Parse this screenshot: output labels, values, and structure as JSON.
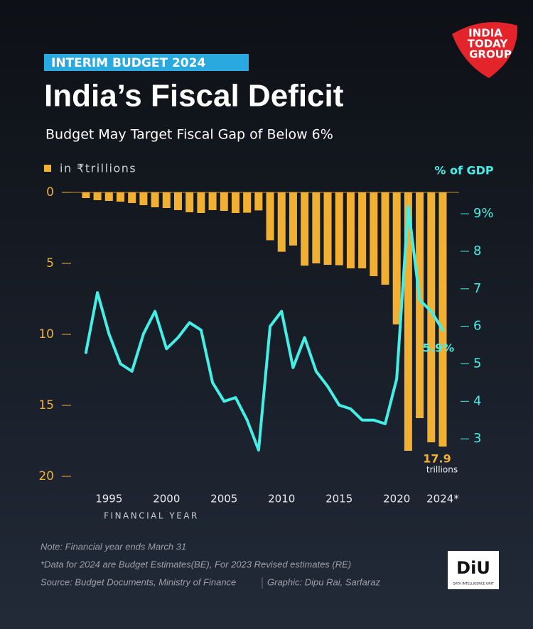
{
  "badge": "INTERIM BUDGET 2024",
  "logo": {
    "lines": [
      "INDIA",
      "TODAY",
      "GROUP"
    ]
  },
  "chart_data": {
    "type": "combo",
    "title": "India’s Fiscal Deficit",
    "subtitle": "Budget May Target Fiscal Gap of Below 6%",
    "x_label": "FINANCIAL YEAR",
    "y2_label": "% of GDP",
    "x": [
      1993,
      1994,
      1995,
      1996,
      1997,
      1998,
      1999,
      2000,
      2001,
      2002,
      2003,
      2004,
      2005,
      2006,
      2007,
      2008,
      2009,
      2010,
      2011,
      2012,
      2013,
      2014,
      2015,
      2016,
      2017,
      2018,
      2019,
      2020,
      2021,
      2022,
      2023,
      2024
    ],
    "xlim": [
      1991.4,
      2025.05
    ],
    "xticks": [
      1995,
      2000,
      2005,
      2010,
      2015,
      2020,
      {
        "value": 2024,
        "label": "2024*"
      }
    ],
    "ylim": [
      0,
      20
    ],
    "y_inverted": true,
    "yticks": [
      0,
      5,
      10,
      15,
      20
    ],
    "y2lim": [
      2,
      9.57
    ],
    "y2ticks": [
      {
        "value": 9,
        "label": "9%"
      },
      8,
      7,
      6,
      5,
      4,
      3
    ],
    "series": [
      {
        "name": "in ₹trillions",
        "type": "bar",
        "color": "#f2b033",
        "values": [
          0.4,
          0.55,
          0.6,
          0.65,
          0.75,
          0.9,
          1.05,
          1.1,
          1.25,
          1.4,
          1.45,
          1.25,
          1.3,
          1.45,
          1.43,
          1.27,
          3.37,
          4.18,
          3.74,
          5.16,
          5.0,
          5.1,
          5.13,
          5.35,
          5.35,
          5.9,
          6.5,
          9.3,
          18.2,
          15.9,
          17.6,
          17.9
        ],
        "value_labels": [
          null,
          null,
          null,
          null,
          null,
          null,
          null,
          null,
          null,
          null,
          null,
          null,
          null,
          null,
          null,
          null,
          null,
          null,
          null,
          null,
          null,
          null,
          null,
          null,
          null,
          null,
          null,
          null,
          null,
          null,
          null,
          "17.9"
        ]
      },
      {
        "name": "% of GDP",
        "type": "line",
        "axis": "y2",
        "color": "#43efe6",
        "values": [
          5.3,
          6.9,
          5.8,
          5.0,
          4.8,
          5.8,
          6.4,
          5.4,
          5.7,
          6.1,
          5.9,
          4.5,
          4.0,
          4.1,
          3.5,
          2.7,
          6.0,
          6.4,
          4.9,
          5.7,
          4.8,
          4.4,
          3.9,
          3.8,
          3.5,
          3.5,
          3.4,
          4.6,
          9.2,
          6.7,
          6.4,
          5.9
        ],
        "value_labels": [
          null,
          null,
          null,
          null,
          null,
          null,
          null,
          null,
          null,
          null,
          null,
          null,
          null,
          null,
          null,
          null,
          null,
          null,
          null,
          null,
          null,
          null,
          null,
          null,
          null,
          null,
          null,
          null,
          null,
          null,
          null,
          "5.9%"
        ]
      }
    ],
    "annotations": [
      "trillions"
    ]
  },
  "notes": [
    "Note: Financial year ends March 31",
    "*Data for 2024 are Budget Estimates(BE), For 2023 Revised estimates (RE)",
    "Source: Budget Documents, Ministry of Finance"
  ],
  "credit": "Graphic: Dipu Rai, Sarfaraz",
  "diu": {
    "mark": "DiU",
    "caption": "DATA INTELLIGENCE UNIT"
  }
}
